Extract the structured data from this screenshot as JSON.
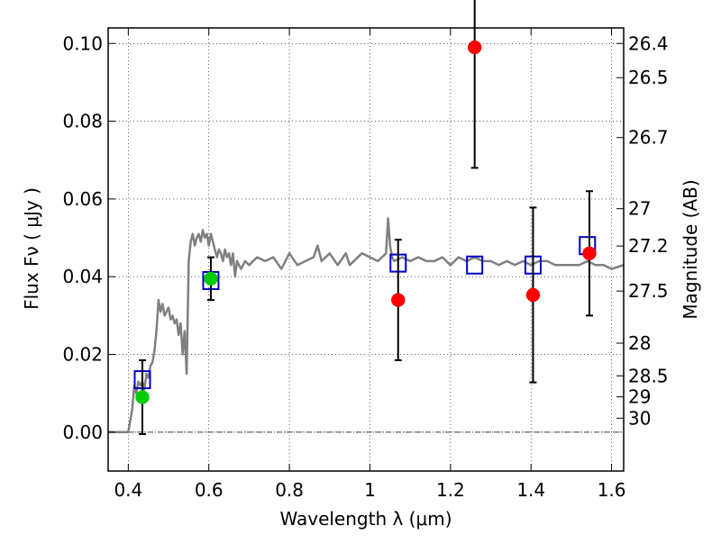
{
  "chart_data": {
    "type": "scatter",
    "xlabel": "Wavelength  λ (μm)",
    "ylabel": "Flux  Fν  ( μJy )",
    "ylabel_right": "Magnitude (AB)",
    "xlim": [
      0.35,
      1.63
    ],
    "ylim": [
      -0.01,
      0.104
    ],
    "grid": true,
    "x_ticks": [
      0.4,
      0.6,
      0.8,
      1.0,
      1.2,
      1.4,
      1.6
    ],
    "x_tick_labels": [
      "0.4",
      "0.6",
      "0.8",
      "1",
      "1.2",
      "1.4",
      "1.6"
    ],
    "y_ticks": [
      0.0,
      0.02,
      0.04,
      0.06,
      0.08,
      0.1
    ],
    "y_tick_labels": [
      "0.00",
      "0.02",
      "0.04",
      "0.06",
      "0.08",
      "0.10"
    ],
    "right_ticks": [
      {
        "flux": 0.1,
        "label": "26.4"
      },
      {
        "flux": 0.0912,
        "label": "26.5"
      },
      {
        "flux": 0.0758,
        "label": "26.7"
      },
      {
        "flux": 0.0575,
        "label": "27"
      },
      {
        "flux": 0.0479,
        "label": "27.2"
      },
      {
        "flux": 0.0363,
        "label": "27.5"
      },
      {
        "flux": 0.0229,
        "label": "28"
      },
      {
        "flux": 0.0145,
        "label": "28.5"
      },
      {
        "flux": 0.0091,
        "label": "29"
      },
      {
        "flux": 0.0036,
        "label": "30"
      }
    ],
    "series": [
      {
        "kind": "line",
        "color": "#808080",
        "x": [
          0.35,
          0.4,
          0.41,
          0.415,
          0.42,
          0.425,
          0.43,
          0.435,
          0.44,
          0.445,
          0.45,
          0.455,
          0.46,
          0.465,
          0.47,
          0.475,
          0.48,
          0.485,
          0.49,
          0.495,
          0.5,
          0.505,
          0.51,
          0.515,
          0.52,
          0.525,
          0.53,
          0.535,
          0.54,
          0.545,
          0.55,
          0.555,
          0.56,
          0.565,
          0.57,
          0.575,
          0.58,
          0.585,
          0.59,
          0.595,
          0.6,
          0.605,
          0.61,
          0.615,
          0.62,
          0.625,
          0.63,
          0.635,
          0.64,
          0.645,
          0.65,
          0.655,
          0.66,
          0.665,
          0.67,
          0.675,
          0.68,
          0.69,
          0.7,
          0.72,
          0.74,
          0.76,
          0.78,
          0.8,
          0.82,
          0.84,
          0.86,
          0.87,
          0.88,
          0.9,
          0.92,
          0.94,
          0.95,
          0.96,
          0.98,
          1.0,
          1.02,
          1.04,
          1.045,
          1.05,
          1.055,
          1.06,
          1.08,
          1.1,
          1.12,
          1.14,
          1.16,
          1.18,
          1.2,
          1.22,
          1.24,
          1.26,
          1.28,
          1.3,
          1.32,
          1.34,
          1.36,
          1.38,
          1.4,
          1.42,
          1.44,
          1.46,
          1.48,
          1.5,
          1.52,
          1.54,
          1.56,
          1.58,
          1.6,
          1.63
        ],
        "y": [
          0.0,
          0.0,
          0.006,
          0.012,
          0.01,
          0.013,
          0.012,
          0.013,
          0.011,
          0.015,
          0.014,
          0.017,
          0.018,
          0.021,
          0.026,
          0.034,
          0.031,
          0.033,
          0.03,
          0.031,
          0.032,
          0.029,
          0.03,
          0.028,
          0.029,
          0.025,
          0.028,
          0.02,
          0.026,
          0.015,
          0.044,
          0.049,
          0.051,
          0.048,
          0.05,
          0.051,
          0.049,
          0.052,
          0.05,
          0.051,
          0.048,
          0.051,
          0.049,
          0.047,
          0.045,
          0.047,
          0.046,
          0.044,
          0.047,
          0.045,
          0.046,
          0.043,
          0.046,
          0.04,
          0.044,
          0.043,
          0.042,
          0.044,
          0.043,
          0.045,
          0.044,
          0.045,
          0.042,
          0.046,
          0.043,
          0.044,
          0.045,
          0.048,
          0.044,
          0.046,
          0.043,
          0.046,
          0.043,
          0.044,
          0.046,
          0.045,
          0.044,
          0.046,
          0.055,
          0.048,
          0.045,
          0.044,
          0.045,
          0.044,
          0.045,
          0.044,
          0.044,
          0.045,
          0.043,
          0.045,
          0.044,
          0.045,
          0.044,
          0.044,
          0.043,
          0.044,
          0.043,
          0.044,
          0.043,
          0.044,
          0.044,
          0.043,
          0.043,
          0.043,
          0.043,
          0.044,
          0.043,
          0.043,
          0.042,
          0.043
        ]
      },
      {
        "kind": "open-square",
        "color": "#0000cc",
        "x": [
          0.435,
          0.605,
          1.07,
          1.26,
          1.405,
          1.54
        ],
        "y": [
          0.0135,
          0.039,
          0.0435,
          0.043,
          0.043,
          0.048
        ]
      },
      {
        "kind": "filled-circle",
        "color": "#00cc00",
        "x": [
          0.435,
          0.605
        ],
        "y": [
          0.009,
          0.0395
        ],
        "yerr": [
          0.0095,
          0.0055
        ]
      },
      {
        "kind": "filled-circle",
        "color": "#ff0000",
        "x": [
          1.07,
          1.26,
          1.405,
          1.545
        ],
        "y": [
          0.034,
          0.099,
          0.0353,
          0.046
        ],
        "yerr": [
          0.0155,
          0.031,
          0.0225,
          0.016
        ]
      }
    ]
  }
}
